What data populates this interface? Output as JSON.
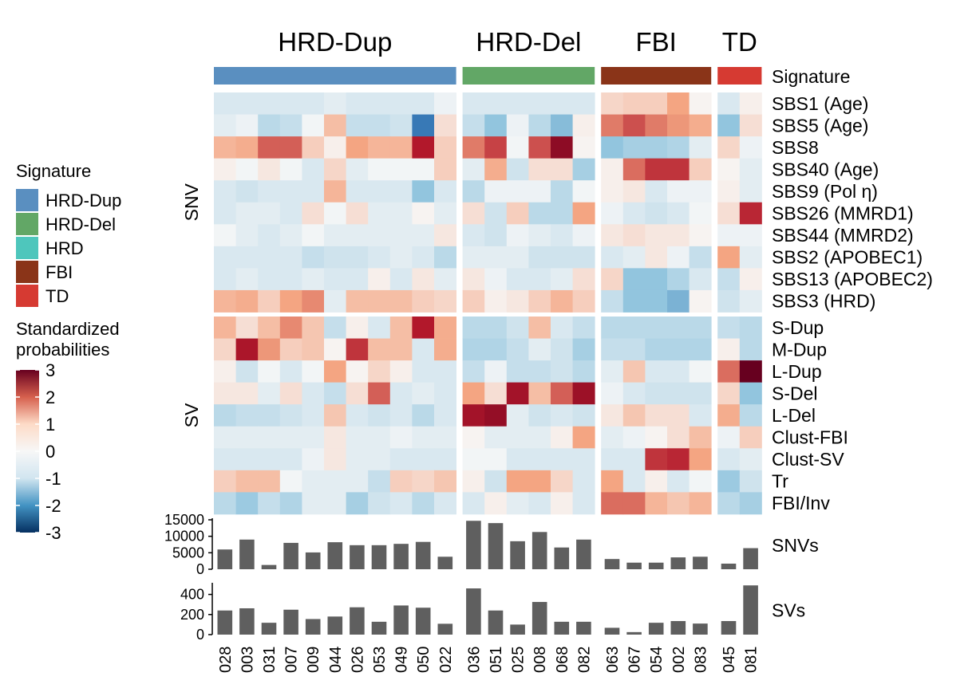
{
  "chart_data": {
    "type": "heatmap",
    "groups": [
      {
        "name": "HRD-Dup",
        "color": "#5a8fc0",
        "samples": [
          "028",
          "003",
          "031",
          "007",
          "009",
          "044",
          "026",
          "053",
          "049",
          "050",
          "022"
        ]
      },
      {
        "name": "HRD-Del",
        "color": "#62a766",
        "samples": [
          "036",
          "051",
          "025",
          "008",
          "068",
          "082"
        ]
      },
      {
        "name": "FBI",
        "color": "#8a3418",
        "samples": [
          "063",
          "067",
          "054",
          "002",
          "083"
        ]
      },
      {
        "name": "TD",
        "color": "#d63a32",
        "samples": [
          "045",
          "081"
        ]
      }
    ],
    "annotation_label": "Signature",
    "row_blocks": [
      {
        "name": "SNV",
        "rows": [
          "SBS1 (Age)",
          "SBS5 (Age)",
          "SBS8",
          "SBS40 (Age)",
          "SBS9 (Pol η)",
          "SBS26 (MMRD1)",
          "SBS44 (MMRD2)",
          "SBS2 (APOBEC1)",
          "SBS13 (APOBEC2)",
          "SBS3 (HRD)"
        ]
      },
      {
        "name": "SV",
        "rows": [
          "S-Dup",
          "M-Dup",
          "L-Dup",
          "S-Del",
          "L-Del",
          "Clust-FBI",
          "Clust-SV",
          "Tr",
          "FBI/Inv"
        ]
      }
    ],
    "values": [
      [
        -0.3,
        -0.3,
        -0.3,
        -0.3,
        -0.3,
        -0.2,
        -0.3,
        -0.3,
        -0.3,
        -0.3,
        -0.1,
        -0.3,
        -0.3,
        -0.3,
        -0.3,
        -0.3,
        -0.3,
        0.4,
        0.5,
        0.5,
        1.0,
        0.05,
        -0.3,
        0.1
      ],
      [
        -0.2,
        -0.1,
        -0.6,
        -0.5,
        -0.05,
        0.7,
        -0.5,
        -0.5,
        -0.4,
        -1.8,
        0.3,
        -0.5,
        -1.0,
        -0.1,
        -0.6,
        -1.1,
        0.1,
        1.3,
        1.6,
        1.3,
        1.1,
        0.9,
        -1.0,
        0.3
      ],
      [
        0.8,
        0.9,
        1.5,
        1.5,
        0.5,
        0.1,
        1.0,
        0.8,
        0.8,
        2.0,
        0.5,
        1.3,
        1.7,
        -0.05,
        1.6,
        2.5,
        0.05,
        -1.0,
        -0.8,
        -0.8,
        -0.7,
        -0.2,
        0.4,
        -0.1
      ],
      [
        0.1,
        -0.05,
        0.2,
        -0.05,
        -0.3,
        0.4,
        -0.2,
        -0.05,
        -0.05,
        -0.05,
        0.5,
        -0.2,
        0.9,
        -0.4,
        0.3,
        0.3,
        -0.8,
        0.1,
        1.4,
        1.8,
        1.8,
        0.5,
        0.05,
        -0.2
      ],
      [
        -0.3,
        -0.4,
        -0.3,
        -0.3,
        -0.3,
        0.8,
        -0.3,
        -0.3,
        -0.3,
        -1.0,
        -0.3,
        -0.6,
        -0.1,
        -0.1,
        -0.1,
        -0.6,
        -0.05,
        0.1,
        0.2,
        -0.3,
        -0.1,
        -0.1,
        0.1,
        -0.2
      ],
      [
        -0.3,
        -0.2,
        -0.2,
        -0.3,
        0.3,
        -0.05,
        0.3,
        -0.2,
        -0.2,
        0.05,
        -0.2,
        0.3,
        -0.4,
        0.5,
        -0.6,
        -0.6,
        1.0,
        -0.1,
        -0.3,
        -0.4,
        -0.3,
        -0.05,
        0.3,
        1.9
      ],
      [
        -0.05,
        -0.2,
        -0.3,
        -0.2,
        -0.05,
        -0.2,
        -0.2,
        -0.2,
        -0.2,
        -0.2,
        0.2,
        -0.3,
        -0.4,
        -0.1,
        -0.2,
        -0.3,
        -0.1,
        0.2,
        0.3,
        0.2,
        0.2,
        0.05,
        -0.1,
        -0.1
      ],
      [
        -0.3,
        -0.3,
        -0.3,
        -0.3,
        -0.5,
        -0.4,
        -0.4,
        -0.3,
        -0.2,
        -0.3,
        -0.6,
        -0.2,
        -0.2,
        -0.2,
        -0.4,
        -0.4,
        -0.4,
        -0.3,
        -0.2,
        0.2,
        -0.1,
        -0.5,
        1.0,
        -0.2
      ],
      [
        -0.3,
        -0.2,
        -0.3,
        -0.3,
        -0.2,
        -0.3,
        -0.3,
        0.1,
        -0.3,
        0.2,
        -0.2,
        0.2,
        -0.1,
        -0.3,
        -0.3,
        -0.2,
        0.3,
        0.4,
        -1.0,
        -1.0,
        -0.7,
        -0.3,
        -0.5,
        0.1
      ],
      [
        0.8,
        0.9,
        0.5,
        1.0,
        1.2,
        -0.2,
        0.7,
        0.7,
        0.7,
        0.5,
        0.4,
        0.5,
        0.1,
        0.2,
        0.5,
        0.8,
        0.5,
        -0.5,
        -1.0,
        -1.0,
        -1.2,
        0.05,
        -0.4,
        -0.2
      ],
      [
        0.8,
        0.3,
        0.7,
        1.2,
        0.6,
        -0.5,
        0.1,
        -0.3,
        0.7,
        2.0,
        0.9,
        -0.6,
        -0.6,
        -0.4,
        0.7,
        -0.3,
        -0.5,
        -0.6,
        -0.6,
        -0.6,
        -0.6,
        -0.6,
        -0.5,
        -0.6
      ],
      [
        0.4,
        2.1,
        1.1,
        0.5,
        0.6,
        0.05,
        1.8,
        0.7,
        0.7,
        -0.3,
        0.9,
        -0.7,
        -0.7,
        -0.5,
        -0.2,
        -0.4,
        -0.8,
        -0.5,
        -0.5,
        -0.7,
        -0.7,
        -0.7,
        0.1,
        -0.6
      ],
      [
        0.1,
        -0.4,
        -0.05,
        -0.3,
        -0.05,
        1.0,
        0.05,
        0.4,
        0.1,
        -0.3,
        -0.3,
        -0.5,
        -0.1,
        -0.5,
        -0.5,
        -0.4,
        -0.6,
        -0.2,
        0.6,
        -0.3,
        -0.3,
        -0.05,
        1.4,
        3.0
      ],
      [
        0.2,
        0.2,
        -0.2,
        0.3,
        -0.3,
        -0.5,
        0.3,
        1.5,
        -0.3,
        -0.2,
        -0.3,
        1.0,
        0.3,
        2.2,
        0.7,
        1.5,
        2.3,
        -0.1,
        -0.3,
        -0.4,
        -0.4,
        -0.4,
        0.4,
        -1.0
      ],
      [
        -0.6,
        -0.5,
        -0.5,
        -0.4,
        -0.3,
        0.6,
        -0.3,
        -0.4,
        -0.3,
        -0.6,
        -0.3,
        2.2,
        2.4,
        -0.2,
        -0.4,
        -0.3,
        -0.4,
        0.2,
        0.6,
        0.3,
        0.3,
        -0.3,
        0.9,
        -0.6
      ],
      [
        -0.2,
        -0.2,
        -0.2,
        -0.2,
        -0.2,
        0.2,
        -0.2,
        -0.2,
        -0.1,
        -0.2,
        -0.2,
        0.05,
        -0.2,
        -0.2,
        -0.2,
        0.1,
        1.0,
        -0.2,
        -0.1,
        0.05,
        0.3,
        0.7,
        -0.1,
        0.5
      ],
      [
        -0.3,
        -0.3,
        -0.3,
        -0.3,
        -0.1,
        0.2,
        -0.2,
        -0.2,
        -0.3,
        -0.3,
        -0.3,
        -0.05,
        -0.05,
        -0.3,
        -0.3,
        -0.3,
        -0.3,
        -0.3,
        -0.3,
        1.8,
        1.9,
        1.0,
        -0.3,
        -0.2
      ],
      [
        0.5,
        0.7,
        0.7,
        -0.05,
        -0.2,
        -0.2,
        -0.2,
        -0.5,
        0.5,
        0.4,
        0.6,
        0.1,
        -0.4,
        1.0,
        1.0,
        0.4,
        -0.3,
        1.0,
        -0.3,
        0.1,
        -0.3,
        -0.05,
        -0.9,
        -0.4
      ],
      [
        -0.6,
        -0.9,
        -0.5,
        -0.7,
        -0.2,
        -0.2,
        -0.8,
        -0.4,
        -0.3,
        -0.6,
        -0.3,
        -0.3,
        0.1,
        -0.2,
        -0.3,
        0.1,
        -0.3,
        1.4,
        1.4,
        0.8,
        0.6,
        0.8,
        -0.6,
        -0.8
      ]
    ],
    "snvs": {
      "label": "SNVs",
      "ylim": [
        0,
        15000
      ],
      "ticks": [
        0,
        5000,
        10000,
        15000
      ],
      "values": [
        6000,
        9000,
        1300,
        8000,
        5100,
        8200,
        7300,
        7300,
        7700,
        8300,
        3800,
        14700,
        14000,
        8500,
        11300,
        6600,
        9000,
        3100,
        2000,
        2000,
        3600,
        3800,
        1700,
        6400
      ]
    },
    "svs": {
      "label": "SVs",
      "ylim": [
        0,
        500
      ],
      "ticks": [
        0,
        200,
        400
      ],
      "values": [
        240,
        262,
        118,
        248,
        155,
        180,
        272,
        128,
        290,
        268,
        108,
        460,
        240,
        100,
        325,
        128,
        128,
        68,
        25,
        118,
        135,
        110,
        135,
        490
      ]
    },
    "legend": {
      "signature_title": "Signature",
      "signature_items": [
        {
          "label": "HRD-Dup",
          "color": "#5a8fc0"
        },
        {
          "label": "HRD-Del",
          "color": "#62a766"
        },
        {
          "label": "HRD",
          "color": "#4ec6bc"
        },
        {
          "label": "FBI",
          "color": "#8a3418"
        },
        {
          "label": "TD",
          "color": "#d63a32"
        }
      ],
      "scale_title": [
        "Standardized",
        "probabilities"
      ],
      "scale_ticks": [
        "3",
        "2",
        "1",
        "0",
        "-1",
        "-2",
        "-3"
      ],
      "scale_range": [
        -3,
        3
      ],
      "placement": "left"
    },
    "colormap": "RdBu (reversed)"
  }
}
